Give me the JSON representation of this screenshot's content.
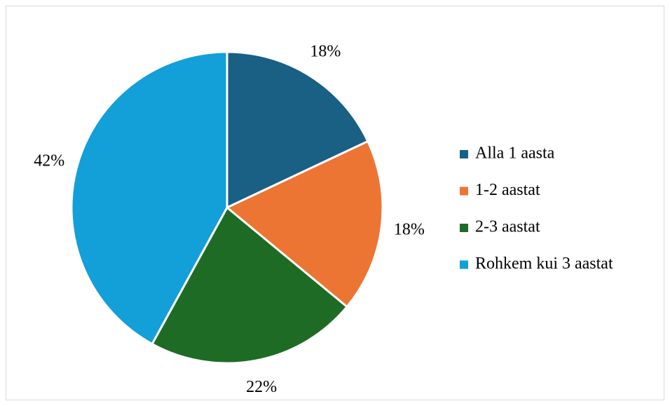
{
  "chart_data": {
    "type": "pie",
    "categories": [
      "Alla 1 aasta",
      "1-2 aastat",
      "2-3 aastat",
      "Rohkem kui 3 aastat"
    ],
    "values": [
      18,
      18,
      22,
      42
    ],
    "value_labels": [
      "18%",
      "18%",
      "22%",
      "42%"
    ],
    "colors": [
      "#1a5f84",
      "#ed7533",
      "#1e6b25",
      "#139fd7"
    ],
    "legend": "right"
  }
}
